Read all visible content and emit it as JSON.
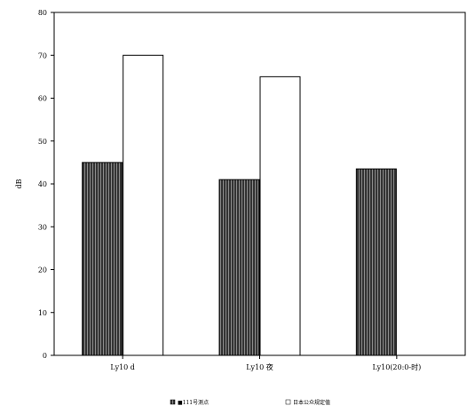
{
  "chart_data": {
    "type": "bar",
    "ylabel": "dB",
    "ylim": [
      0,
      80
    ],
    "yticks": [
      0,
      10,
      20,
      30,
      40,
      50,
      60,
      70,
      80
    ],
    "categories": [
      "Ly10 d",
      "Ly10 夜",
      "Ly10(20:0-时)"
    ],
    "series": [
      {
        "name": "■111号测点",
        "values": [
          45,
          41,
          43.5
        ],
        "fill": "#333333"
      },
      {
        "name": "日本公众规定值",
        "values": [
          70,
          65,
          null
        ],
        "fill": "#ffffff"
      }
    ],
    "grid": false,
    "legend_position": "bottom-center"
  },
  "colors": {
    "axis": "#000000",
    "dark_bar": "#333333",
    "stripe": "#888888"
  }
}
